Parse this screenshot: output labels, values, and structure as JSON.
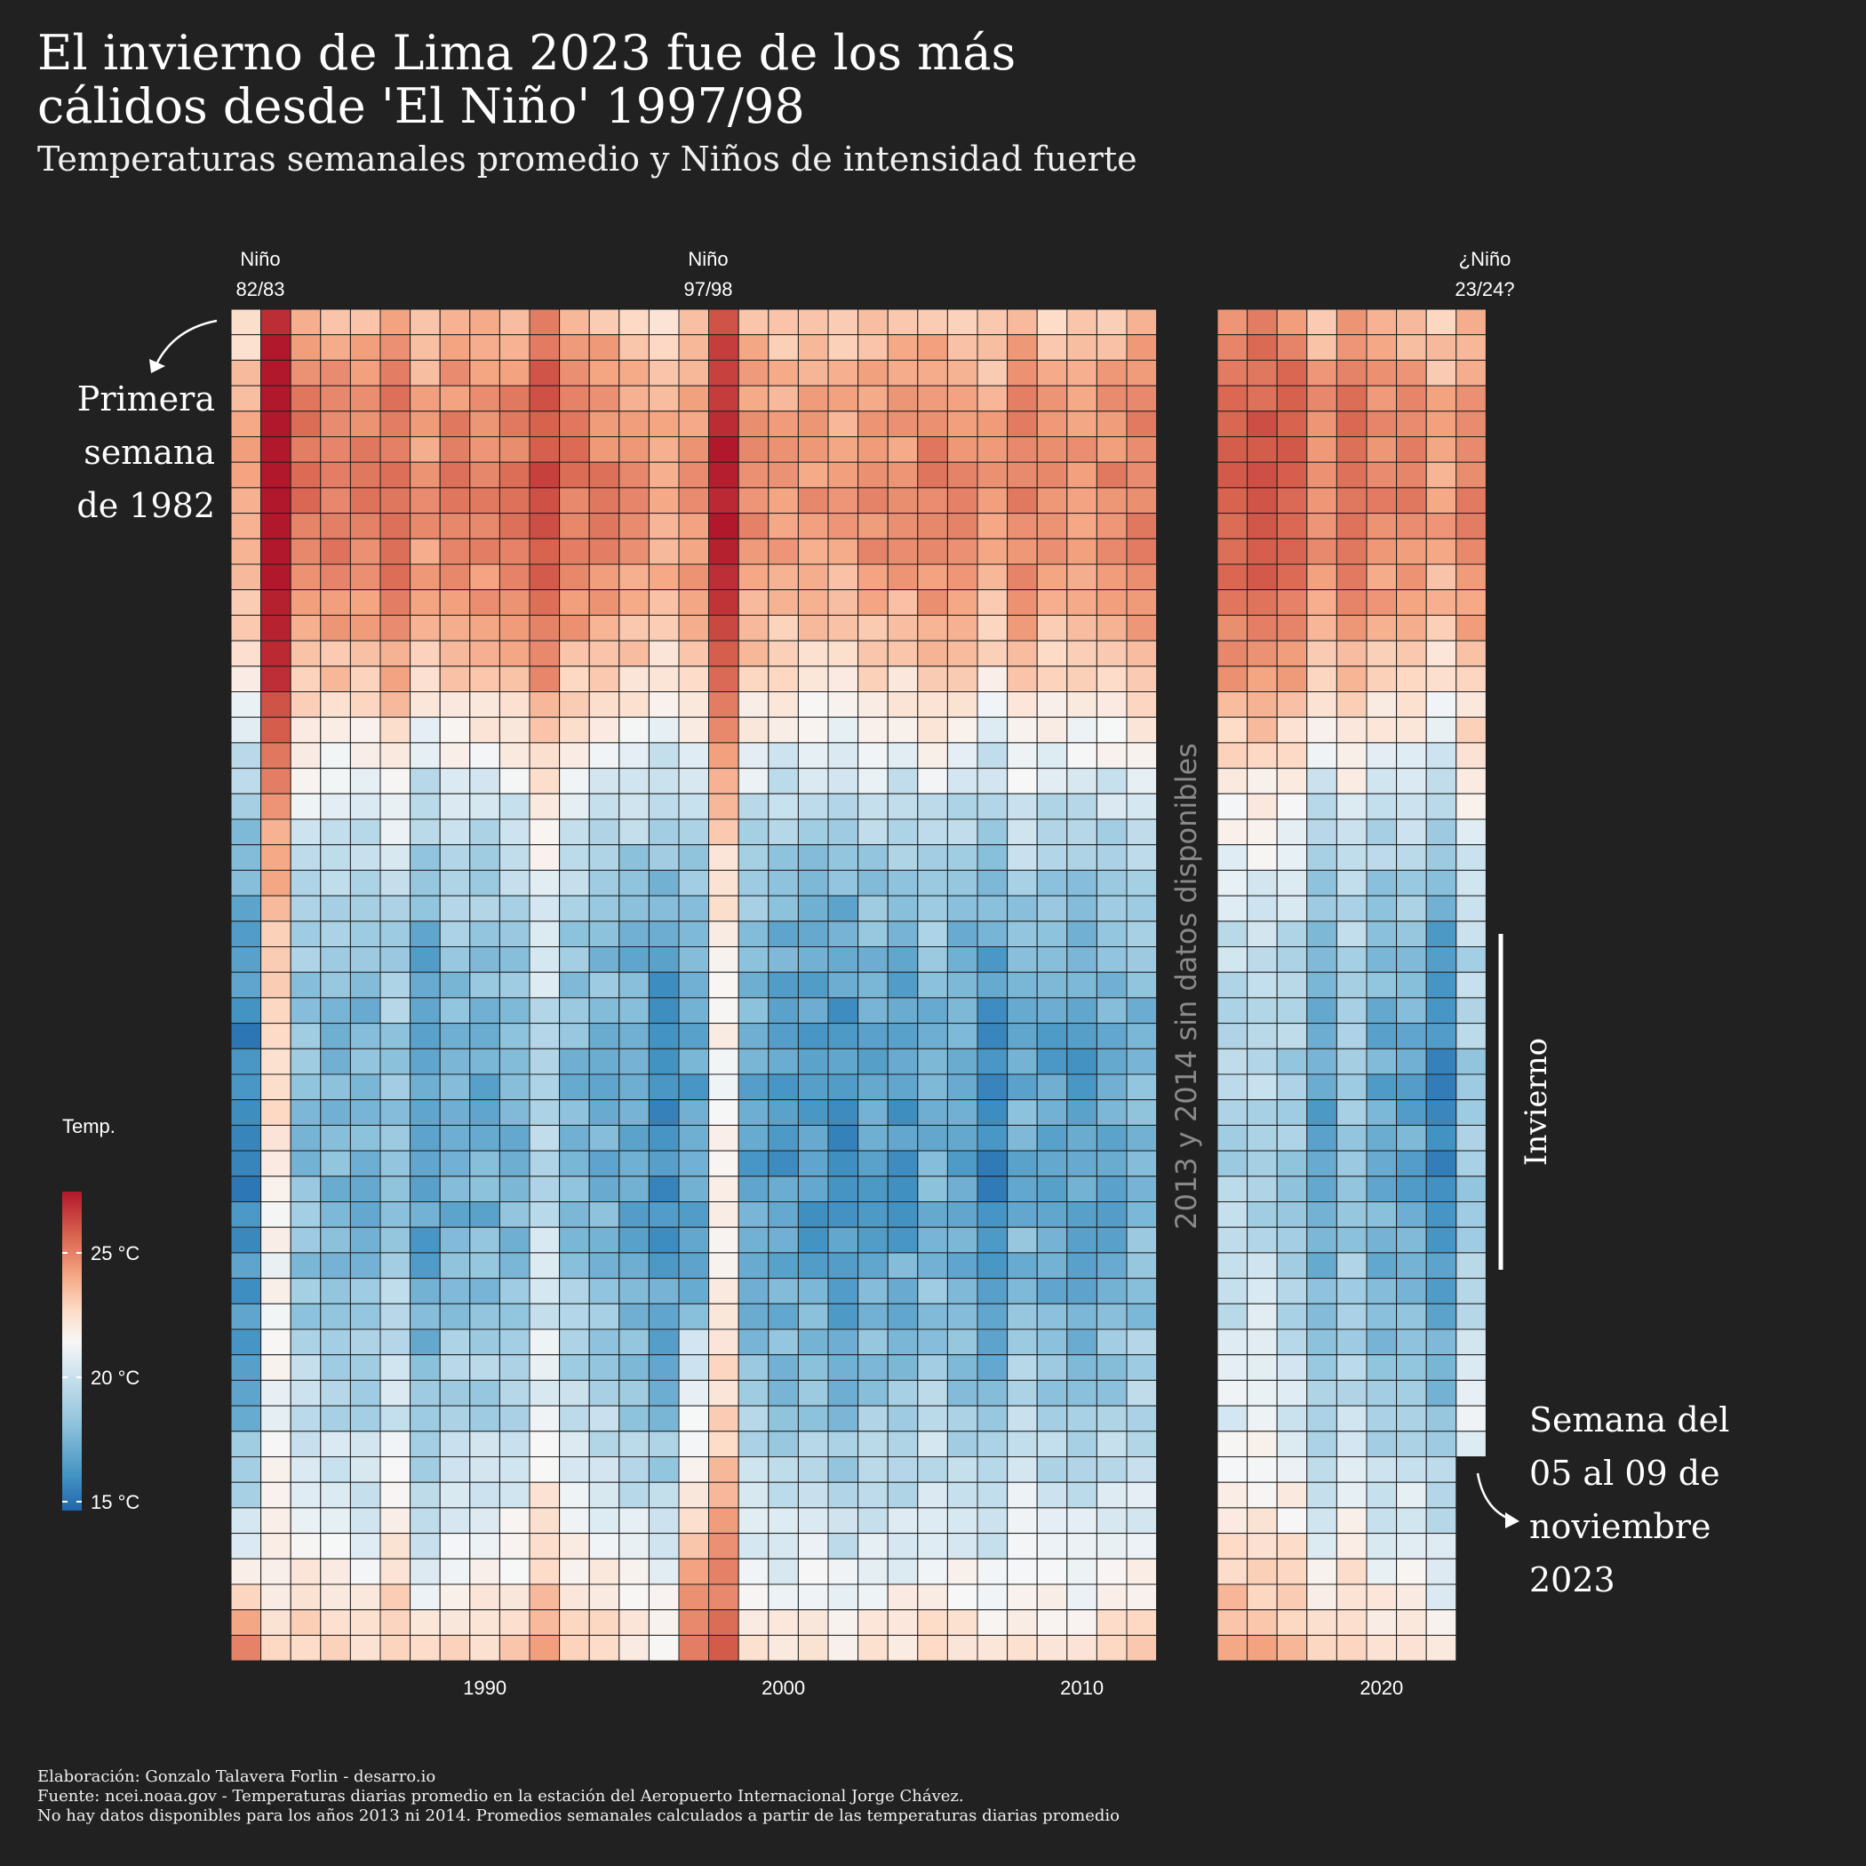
{
  "header": {
    "title_line1": "El invierno de Lima 2023 fue de los más",
    "title_line2": "cálidos desde 'El Niño' 1997/98",
    "subtitle": "Temperaturas semanales promedio y Niños de intensidad fuerte"
  },
  "annotations": {
    "nino_8283_line1": "Niño",
    "nino_8283_line2": "82/83",
    "nino_9798_line1": "Niño",
    "nino_9798_line2": "97/98",
    "nino_2324_line1": "¿Niño",
    "nino_2324_line2": "23/24?",
    "first_week_line1": "Primera",
    "first_week_line2": "semana",
    "first_week_line3": "de 1982",
    "last_week_line1": "Semana del",
    "last_week_line2": "05 al 09 de",
    "last_week_line3": "noviembre",
    "last_week_line4": "2023",
    "gap_label": "2013 y 2014 sin datos disponibles",
    "winter_label": "Invierno"
  },
  "legend": {
    "title": "Temp.",
    "ticks": [
      "25 °C",
      "20 °C",
      "15 °C"
    ]
  },
  "footer": {
    "line1": "Elaboración: Gonzalo Talavera Forlin - desarro.io",
    "line2": "Fuente: ncei.noaa.gov - Temperaturas diarias promedio en la estación del Aeropuerto Internacional Jorge Chávez.",
    "line3": "No hay datos disponibles para los años 2013 ni 2014. Promedios semanales calculados a partir de las temperaturas diarias promedio"
  },
  "colors": {
    "background": "#212121",
    "cold": "#2166ac",
    "mid": "#f7f7f7",
    "hot": "#b2182b"
  },
  "chart_data": {
    "type": "heatmap",
    "title": "El invierno de Lima 2023 fue de los más cálidos desde 'El Niño' 1997/98",
    "xlabel": "",
    "ylabel": "",
    "x_ticks": [
      "1990",
      "2000",
      "2010",
      "2020"
    ],
    "years_panel_1": [
      1982,
      1983,
      1984,
      1985,
      1986,
      1987,
      1988,
      1989,
      1990,
      1991,
      1992,
      1993,
      1994,
      1995,
      1996,
      1997,
      1998,
      1999,
      2000,
      2001,
      2002,
      2003,
      2004,
      2005,
      2006,
      2007,
      2008,
      2009,
      2010,
      2011,
      2012
    ],
    "years_panel_2": [
      2015,
      2016,
      2017,
      2018,
      2019,
      2020,
      2021,
      2022,
      2023
    ],
    "missing_years": [
      2013,
      2014
    ],
    "weeks_per_year": 53,
    "last_year_weeks": 45,
    "color_scale": {
      "min": 15,
      "mid": 20,
      "max": 27.5,
      "unit": "°C"
    },
    "year_offsets": {
      "1982": -1.2,
      "1983": 4.5,
      "1984": 0.4,
      "1985": 0.2,
      "1986": 0.0,
      "1987": 0.7,
      "1988": -0.6,
      "1989": 0.0,
      "1990": 0.0,
      "1991": 0.2,
      "1992": 1.6,
      "1993": 0.3,
      "1994": 0.0,
      "1995": -0.4,
      "1996": -0.9,
      "1997": 0.9,
      "1998": 3.2,
      "1999": -0.3,
      "2000": -0.6,
      "2001": -0.6,
      "2002": -0.9,
      "2003": -0.4,
      "2004": -0.5,
      "2005": 0.0,
      "2006": -0.4,
      "2007": -0.9,
      "2008": 0.0,
      "2009": -0.4,
      "2010": -0.5,
      "2011": -0.2,
      "2012": 0.1,
      "2015": 1.3,
      "2016": 1.4,
      "2017": 1.0,
      "2018": -0.2,
      "2019": 0.6,
      "2020": -0.2,
      "2021": -0.2,
      "2022": -0.9,
      "2023": 1.0
    },
    "climatology_weekly_c": [
      22.4,
      22.9,
      23.3,
      23.6,
      23.8,
      23.9,
      24.0,
      24.0,
      23.9,
      23.8,
      23.5,
      23.2,
      22.8,
      22.3,
      21.8,
      21.2,
      20.6,
      20.0,
      19.5,
      19.0,
      18.6,
      18.3,
      18.0,
      17.8,
      17.6,
      17.4,
      17.3,
      17.2,
      17.1,
      17.0,
      16.9,
      16.9,
      16.9,
      16.9,
      16.9,
      17.0,
      17.1,
      17.2,
      17.4,
      17.5,
      17.7,
      17.9,
      18.1,
      18.3,
      18.6,
      18.9,
      19.2,
      19.5,
      19.9,
      20.3,
      20.7,
      21.1,
      21.5
    ],
    "value_rule": "weekly temperature = climatology_weekly_c[week] + year_offsets[year] (approximate reading of colors)"
  }
}
